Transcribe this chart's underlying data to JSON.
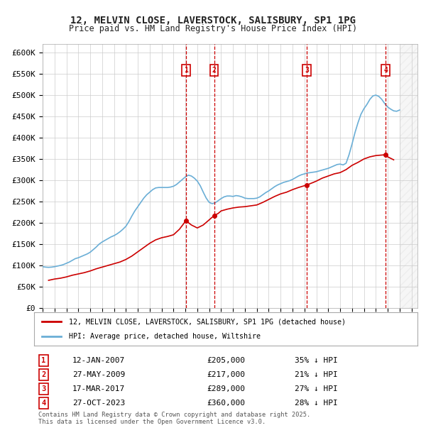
{
  "title": "12, MELVIN CLOSE, LAVERSTOCK, SALISBURY, SP1 1PG",
  "subtitle": "Price paid vs. HM Land Registry's House Price Index (HPI)",
  "ylabel_color": "#333333",
  "background_color": "#ffffff",
  "plot_bg_color": "#ffffff",
  "grid_color": "#cccccc",
  "hpi_color": "#6aaed6",
  "price_color": "#cc0000",
  "dashed_line_color": "#cc0000",
  "annotation_box_color": "#cc0000",
  "ylim": [
    0,
    620000
  ],
  "yticks": [
    0,
    50000,
    100000,
    150000,
    200000,
    250000,
    300000,
    350000,
    400000,
    450000,
    500000,
    550000,
    600000
  ],
  "ytick_labels": [
    "£0",
    "£50K",
    "£100K",
    "£150K",
    "£200K",
    "£250K",
    "£300K",
    "£350K",
    "£400K",
    "£450K",
    "£500K",
    "£550K",
    "£600K"
  ],
  "xlim_start": 1995.0,
  "xlim_end": 2026.5,
  "transactions": [
    {
      "num": 1,
      "date": "12-JAN-2007",
      "year": 2007.04,
      "price": 205000,
      "pct": "35%",
      "dir": "↓"
    },
    {
      "num": 2,
      "date": "27-MAY-2009",
      "year": 2009.41,
      "price": 217000,
      "pct": "21%",
      "dir": "↓"
    },
    {
      "num": 3,
      "date": "17-MAR-2017",
      "year": 2017.21,
      "price": 289000,
      "pct": "27%",
      "dir": "↓"
    },
    {
      "num": 4,
      "date": "27-OCT-2023",
      "year": 2023.82,
      "price": 360000,
      "pct": "28%",
      "dir": "↓"
    }
  ],
  "legend_label_price": "12, MELVIN CLOSE, LAVERSTOCK, SALISBURY, SP1 1PG (detached house)",
  "legend_label_hpi": "HPI: Average price, detached house, Wiltshire",
  "footer": "Contains HM Land Registry data © Crown copyright and database right 2025.\nThis data is licensed under the Open Government Licence v3.0.",
  "hpi_data_x": [
    1995.0,
    1995.25,
    1995.5,
    1995.75,
    1996.0,
    1996.25,
    1996.5,
    1996.75,
    1997.0,
    1997.25,
    1997.5,
    1997.75,
    1998.0,
    1998.25,
    1998.5,
    1998.75,
    1999.0,
    1999.25,
    1999.5,
    1999.75,
    2000.0,
    2000.25,
    2000.5,
    2000.75,
    2001.0,
    2001.25,
    2001.5,
    2001.75,
    2002.0,
    2002.25,
    2002.5,
    2002.75,
    2003.0,
    2003.25,
    2003.5,
    2003.75,
    2004.0,
    2004.25,
    2004.5,
    2004.75,
    2005.0,
    2005.25,
    2005.5,
    2005.75,
    2006.0,
    2006.25,
    2006.5,
    2006.75,
    2007.0,
    2007.25,
    2007.5,
    2007.75,
    2008.0,
    2008.25,
    2008.5,
    2008.75,
    2009.0,
    2009.25,
    2009.5,
    2009.75,
    2010.0,
    2010.25,
    2010.5,
    2010.75,
    2011.0,
    2011.25,
    2011.5,
    2011.75,
    2012.0,
    2012.25,
    2012.5,
    2012.75,
    2013.0,
    2013.25,
    2013.5,
    2013.75,
    2014.0,
    2014.25,
    2014.5,
    2014.75,
    2015.0,
    2015.25,
    2015.5,
    2015.75,
    2016.0,
    2016.25,
    2016.5,
    2016.75,
    2017.0,
    2017.25,
    2017.5,
    2017.75,
    2018.0,
    2018.25,
    2018.5,
    2018.75,
    2019.0,
    2019.25,
    2019.5,
    2019.75,
    2020.0,
    2020.25,
    2020.5,
    2020.75,
    2021.0,
    2021.25,
    2021.5,
    2021.75,
    2022.0,
    2022.25,
    2022.5,
    2022.75,
    2023.0,
    2023.25,
    2023.5,
    2023.75,
    2024.0,
    2024.25,
    2024.5,
    2024.75,
    2025.0
  ],
  "hpi_data_y": [
    97000,
    96000,
    95500,
    96000,
    97000,
    98500,
    100000,
    102000,
    105000,
    108000,
    112000,
    116000,
    118000,
    121000,
    124000,
    127000,
    131000,
    137000,
    143000,
    150000,
    155000,
    159000,
    163000,
    167000,
    170000,
    174000,
    179000,
    185000,
    192000,
    203000,
    216000,
    228000,
    238000,
    248000,
    258000,
    266000,
    272000,
    278000,
    282000,
    283000,
    283000,
    283000,
    283000,
    284000,
    286000,
    290000,
    296000,
    302000,
    308000,
    312000,
    310000,
    305000,
    298000,
    287000,
    272000,
    258000,
    248000,
    245000,
    247000,
    252000,
    257000,
    261000,
    263000,
    263000,
    262000,
    264000,
    263000,
    261000,
    258000,
    257000,
    257000,
    257000,
    258000,
    261000,
    266000,
    271000,
    275000,
    280000,
    285000,
    289000,
    292000,
    295000,
    297000,
    299000,
    302000,
    306000,
    310000,
    313000,
    315000,
    317000,
    318000,
    319000,
    320000,
    322000,
    324000,
    326000,
    328000,
    331000,
    334000,
    337000,
    338000,
    336000,
    340000,
    360000,
    385000,
    412000,
    435000,
    455000,
    468000,
    478000,
    490000,
    498000,
    500000,
    497000,
    490000,
    480000,
    472000,
    467000,
    463000,
    462000,
    465000
  ],
  "price_data_x": [
    1995.5,
    1996.0,
    1996.5,
    1997.0,
    1997.5,
    1998.0,
    1998.5,
    1999.0,
    1999.5,
    2000.0,
    2000.5,
    2001.0,
    2001.5,
    2002.0,
    2002.5,
    2003.0,
    2003.5,
    2004.0,
    2004.5,
    2005.0,
    2005.5,
    2006.0,
    2006.5,
    2007.04,
    2007.5,
    2008.0,
    2008.5,
    2009.41,
    2009.75,
    2010.0,
    2010.5,
    2011.0,
    2011.5,
    2012.0,
    2012.5,
    2013.0,
    2013.5,
    2014.0,
    2014.5,
    2015.0,
    2015.5,
    2016.0,
    2016.5,
    2017.21,
    2017.75,
    2018.0,
    2018.5,
    2019.0,
    2019.5,
    2020.0,
    2020.5,
    2021.0,
    2021.5,
    2022.0,
    2022.5,
    2023.0,
    2023.82,
    2024.0,
    2024.5
  ],
  "price_data_y": [
    65000,
    68000,
    70000,
    73000,
    77000,
    80000,
    83000,
    87000,
    92000,
    96000,
    100000,
    104000,
    108000,
    114000,
    122000,
    132000,
    142000,
    152000,
    160000,
    165000,
    168000,
    172000,
    185000,
    205000,
    195000,
    188000,
    195000,
    217000,
    222000,
    228000,
    232000,
    235000,
    237000,
    238000,
    240000,
    242000,
    248000,
    255000,
    262000,
    268000,
    272000,
    278000,
    283000,
    289000,
    295000,
    298000,
    305000,
    310000,
    315000,
    318000,
    325000,
    335000,
    342000,
    350000,
    355000,
    358000,
    360000,
    355000,
    348000
  ]
}
